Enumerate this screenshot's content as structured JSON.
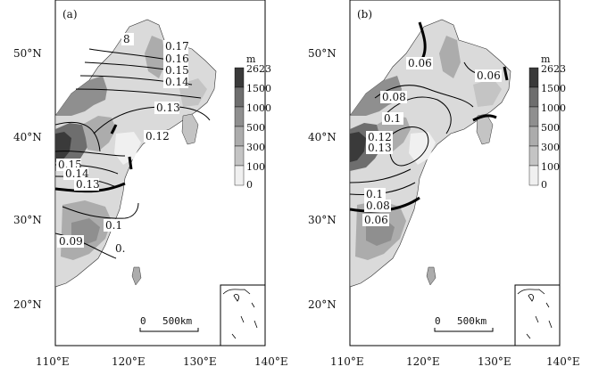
{
  "panels": [
    {
      "id": "a",
      "label": "(a)",
      "x_ticks": [
        "110°E",
        "120°E",
        "130°E",
        "140°E"
      ],
      "y_ticks": [
        "50°N",
        "40°N",
        "30°N",
        "20°N"
      ],
      "legend": {
        "unit": "m",
        "levels": [
          "2623",
          "1500",
          "1000",
          "500",
          "300",
          "100",
          "0"
        ]
      },
      "scale_bar": {
        "start": "0",
        "end": "500km"
      },
      "contour_labels": [
        "8",
        "0.17",
        "0.16",
        "0.15",
        "0.14",
        "0.13",
        "0.12",
        "0.15",
        "0.14",
        "0.13",
        "0.1",
        "0.09",
        "0."
      ]
    },
    {
      "id": "b",
      "label": "(b)",
      "x_ticks": [
        "110°E",
        "120°E",
        "130°E",
        "140°E"
      ],
      "y_ticks": [
        "50°N",
        "40°N",
        "30°N",
        "20°N"
      ],
      "legend": {
        "unit": "m",
        "levels": [
          "2623",
          "1500",
          "1000",
          "500",
          "300",
          "100",
          "0"
        ]
      },
      "scale_bar": {
        "start": "0",
        "end": "500km"
      },
      "contour_labels": [
        "0.06",
        "0.06",
        "0.08",
        "0.1",
        "0.12",
        "0.13",
        "0.1",
        "0.08",
        "0.06"
      ]
    }
  ],
  "colors": {
    "elev_2623": "#3a3a3a",
    "elev_1500": "#6e6e6e",
    "elev_1000": "#8f8f8f",
    "elev_500": "#acacac",
    "elev_300": "#c4c4c4",
    "elev_100": "#dadada",
    "elev_0": "#f0f0f0"
  }
}
